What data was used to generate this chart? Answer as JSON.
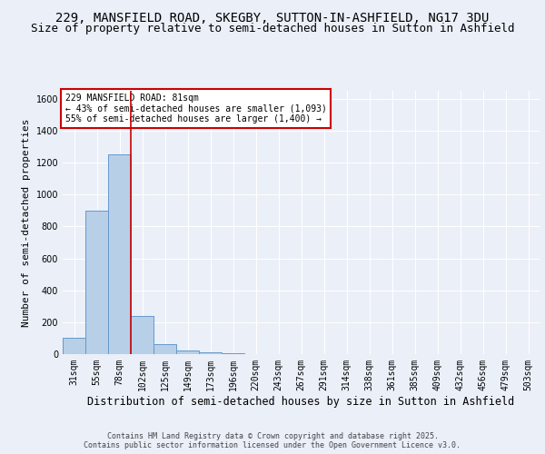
{
  "title1": "229, MANSFIELD ROAD, SKEGBY, SUTTON-IN-ASHFIELD, NG17 3DU",
  "title2": "Size of property relative to semi-detached houses in Sutton in Ashfield",
  "xlabel": "Distribution of semi-detached houses by size in Sutton in Ashfield",
  "ylabel": "Number of semi-detached properties",
  "categories": [
    "31sqm",
    "55sqm",
    "78sqm",
    "102sqm",
    "125sqm",
    "149sqm",
    "173sqm",
    "196sqm",
    "220sqm",
    "243sqm",
    "267sqm",
    "291sqm",
    "314sqm",
    "338sqm",
    "361sqm",
    "385sqm",
    "409sqm",
    "432sqm",
    "456sqm",
    "479sqm",
    "503sqm"
  ],
  "values": [
    100,
    900,
    1250,
    240,
    60,
    20,
    10,
    5,
    0,
    0,
    0,
    0,
    0,
    0,
    0,
    0,
    0,
    0,
    0,
    0,
    0
  ],
  "bar_color": "#b8cfe8",
  "bar_edge_color": "#6699cc",
  "red_line_x": 2.5,
  "annotation_text": "229 MANSFIELD ROAD: 81sqm\n← 43% of semi-detached houses are smaller (1,093)\n55% of semi-detached houses are larger (1,400) →",
  "annotation_box_color": "#ffffff",
  "annotation_box_edge": "#cc0000",
  "ylim": [
    0,
    1650
  ],
  "yticks": [
    0,
    200,
    400,
    600,
    800,
    1000,
    1200,
    1400,
    1600
  ],
  "background_color": "#eaeff8",
  "grid_color": "#ffffff",
  "footer": "Contains HM Land Registry data © Crown copyright and database right 2025.\nContains public sector information licensed under the Open Government Licence v3.0.",
  "title_fontsize": 10,
  "subtitle_fontsize": 9,
  "tick_fontsize": 7,
  "ylabel_fontsize": 8,
  "xlabel_fontsize": 8.5,
  "footer_fontsize": 6
}
